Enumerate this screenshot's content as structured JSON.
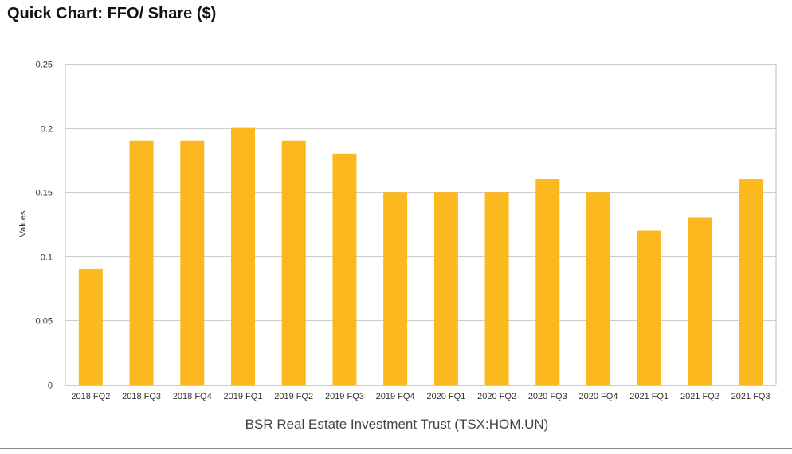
{
  "page": {
    "title": "Quick Chart: FFO/ Share ($)"
  },
  "chart_data": {
    "type": "bar",
    "title": "Quick Chart: FFO/ Share ($)",
    "xlabel": "BSR Real Estate Investment Trust (TSX:HOM.UN)",
    "ylabel": "Values",
    "categories": [
      "2018 FQ2",
      "2018 FQ3",
      "2018 FQ4",
      "2019 FQ1",
      "2019 FQ2",
      "2019 FQ3",
      "2019 FQ4",
      "2020 FQ1",
      "2020 FQ2",
      "2020 FQ3",
      "2020 FQ4",
      "2021 FQ1",
      "2021 FQ2",
      "2021 FQ3"
    ],
    "values": [
      0.09,
      0.19,
      0.19,
      0.2,
      0.19,
      0.18,
      0.15,
      0.15,
      0.15,
      0.16,
      0.15,
      0.12,
      0.13,
      0.16
    ],
    "yticks": [
      "0",
      "0.05",
      "0.1",
      "0.15",
      "0.2",
      "0.25"
    ],
    "ylim": [
      0,
      0.25
    ],
    "grid": true,
    "legend": "none",
    "colors": {
      "bar": "#FBB81F",
      "grid": "#CCCCCC",
      "axis": "#BBBBBB"
    }
  }
}
